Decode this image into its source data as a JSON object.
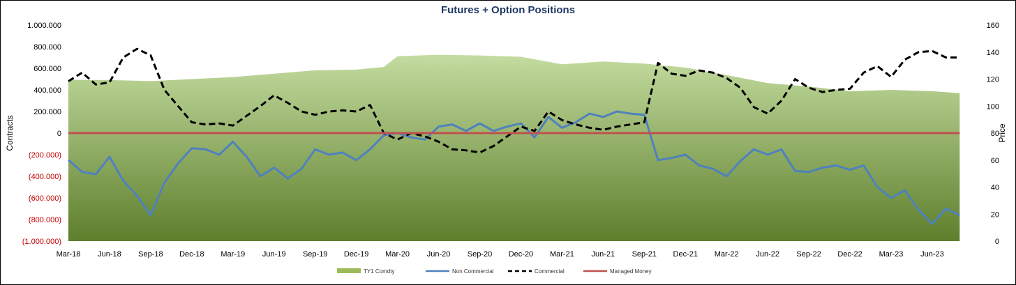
{
  "chart_data": {
    "type": "line",
    "title": "Futures + Option Positions",
    "y_left_label": "Contracts",
    "y_right_label": "Price",
    "y_left_ticks": [
      "1.000.000",
      "800.000",
      "600.000",
      "400.000",
      "200.000",
      "0",
      "(200.000)",
      "(400.000)",
      "(600.000)",
      "(800.000)",
      "(1.000.000)"
    ],
    "y_left_tick_values": [
      1000000,
      800000,
      600000,
      400000,
      200000,
      0,
      -200000,
      -400000,
      -600000,
      -800000,
      -1000000
    ],
    "y_left_range": [
      -1000000,
      1000000
    ],
    "y_right_ticks": [
      "160",
      "140",
      "120",
      "100",
      "80",
      "60",
      "40",
      "20",
      "0"
    ],
    "y_right_range": [
      0,
      160
    ],
    "x_ticks": [
      "Mar-18",
      "Jun-18",
      "Sep-18",
      "Dec-18",
      "Mar-19",
      "Jun-19",
      "Sep-19",
      "Dec-19",
      "Mar-20",
      "Jun-20",
      "Sep-20",
      "Dec-20",
      "Mar-21",
      "Jun-21",
      "Sep-21",
      "Dec-21",
      "Mar-22",
      "Jun-22",
      "Sep-22",
      "Dec-22",
      "Mar-23",
      "Jun-23"
    ],
    "x_range_months": [
      "Mar-18",
      "Aug-23"
    ],
    "grid": false,
    "legend_position": "bottom",
    "colors": {
      "area_top": "#c4dca0",
      "area_bottom": "#5e7f2c",
      "non_commercial": "#4f81bd",
      "commercial": "#000000",
      "managed_money": "#c0504d",
      "negative_ticks": "#c00000"
    },
    "series": [
      {
        "name": "TY1 Comdty",
        "axis": "right",
        "kind": "area",
        "x": [
          "Mar-18",
          "Jun-18",
          "Sep-18",
          "Dec-18",
          "Mar-19",
          "Jun-19",
          "Sep-19",
          "Dec-19",
          "Feb-20",
          "Mar-20",
          "Jun-20",
          "Sep-20",
          "Dec-20",
          "Mar-21",
          "Jun-21",
          "Sep-21",
          "Dec-21",
          "Mar-22",
          "Jun-22",
          "Sep-22",
          "Dec-22",
          "Mar-23",
          "Jun-23",
          "Aug-23"
        ],
        "values": [
          119.5,
          119.3,
          118.5,
          120,
          121.5,
          124,
          126.5,
          127,
          129,
          137,
          138,
          137.5,
          136.5,
          131,
          133,
          131.5,
          128.5,
          123,
          117,
          114.5,
          111,
          112,
          111,
          109.5
        ]
      },
      {
        "name": "Non Commercial",
        "axis": "left",
        "kind": "line",
        "x": [
          "Mar-18",
          "Apr-18",
          "May-18",
          "Jun-18",
          "Jul-18",
          "Aug-18",
          "Sep-18",
          "Oct-18",
          "Nov-18",
          "Dec-18",
          "Jan-19",
          "Feb-19",
          "Mar-19",
          "Apr-19",
          "May-19",
          "Jun-19",
          "Jul-19",
          "Aug-19",
          "Sep-19",
          "Oct-19",
          "Nov-19",
          "Dec-19",
          "Jan-20",
          "Feb-20",
          "Mar-20",
          "Apr-20",
          "May-20",
          "Jun-20",
          "Jul-20",
          "Aug-20",
          "Sep-20",
          "Oct-20",
          "Nov-20",
          "Dec-20",
          "Jan-21",
          "Feb-21",
          "Mar-21",
          "Apr-21",
          "May-21",
          "Jun-21",
          "Jul-21",
          "Aug-21",
          "Sep-21",
          "Oct-21",
          "Nov-21",
          "Dec-21",
          "Jan-22",
          "Feb-22",
          "Mar-22",
          "Apr-22",
          "May-22",
          "Jun-22",
          "Jul-22",
          "Aug-22",
          "Sep-22",
          "Oct-22",
          "Nov-22",
          "Dec-22",
          "Jan-23",
          "Feb-23",
          "Mar-23",
          "Apr-23",
          "May-23",
          "Jun-23",
          "Jul-23",
          "Aug-23"
        ],
        "values": [
          -250000,
          -360000,
          -380000,
          -220000,
          -440000,
          -580000,
          -760000,
          -460000,
          -280000,
          -140000,
          -150000,
          -200000,
          -80000,
          -220000,
          -400000,
          -320000,
          -420000,
          -330000,
          -150000,
          -200000,
          -180000,
          -250000,
          -150000,
          -20000,
          0,
          -40000,
          -60000,
          60000,
          80000,
          20000,
          90000,
          20000,
          60000,
          90000,
          -40000,
          150000,
          50000,
          100000,
          180000,
          150000,
          200000,
          180000,
          170000,
          -250000,
          -230000,
          -200000,
          -300000,
          -330000,
          -400000,
          -260000,
          -150000,
          -200000,
          -150000,
          -350000,
          -360000,
          -320000,
          -300000,
          -340000,
          -300000,
          -500000,
          -600000,
          -530000,
          -710000,
          -840000,
          -700000,
          -760000
        ]
      },
      {
        "name": "Commercial",
        "axis": "left",
        "kind": "dashed-line",
        "x": [
          "Mar-18",
          "Apr-18",
          "May-18",
          "Jun-18",
          "Jul-18",
          "Aug-18",
          "Sep-18",
          "Oct-18",
          "Nov-18",
          "Dec-18",
          "Jan-19",
          "Feb-19",
          "Mar-19",
          "Apr-19",
          "May-19",
          "Jun-19",
          "Jul-19",
          "Aug-19",
          "Sep-19",
          "Oct-19",
          "Nov-19",
          "Dec-19",
          "Jan-20",
          "Feb-20",
          "Mar-20",
          "Apr-20",
          "May-20",
          "Jun-20",
          "Jul-20",
          "Aug-20",
          "Sep-20",
          "Oct-20",
          "Nov-20",
          "Dec-20",
          "Jan-21",
          "Feb-21",
          "Mar-21",
          "Apr-21",
          "May-21",
          "Jun-21",
          "Jul-21",
          "Aug-21",
          "Sep-21",
          "Oct-21",
          "Nov-21",
          "Dec-21",
          "Jan-22",
          "Feb-22",
          "Mar-22",
          "Apr-22",
          "May-22",
          "Jun-22",
          "Jul-22",
          "Aug-22",
          "Sep-22",
          "Oct-22",
          "Nov-22",
          "Dec-22",
          "Jan-23",
          "Feb-23",
          "Mar-23",
          "Apr-23",
          "May-23",
          "Jun-23",
          "Jul-23",
          "Aug-23"
        ],
        "values": [
          480000,
          560000,
          450000,
          470000,
          700000,
          780000,
          720000,
          400000,
          250000,
          100000,
          80000,
          90000,
          70000,
          160000,
          250000,
          350000,
          280000,
          200000,
          170000,
          200000,
          210000,
          200000,
          260000,
          0,
          -60000,
          0,
          -30000,
          -80000,
          -150000,
          -160000,
          -180000,
          -120000,
          -30000,
          60000,
          20000,
          200000,
          120000,
          80000,
          50000,
          30000,
          60000,
          80000,
          100000,
          650000,
          550000,
          530000,
          580000,
          560000,
          510000,
          420000,
          240000,
          180000,
          300000,
          500000,
          420000,
          380000,
          400000,
          410000,
          560000,
          620000,
          520000,
          680000,
          750000,
          760000,
          700000,
          700000
        ]
      },
      {
        "name": "Managed Money",
        "axis": "left",
        "kind": "line",
        "x": [
          "Mar-18",
          "Aug-23"
        ],
        "values": [
          0,
          0
        ]
      }
    ]
  }
}
